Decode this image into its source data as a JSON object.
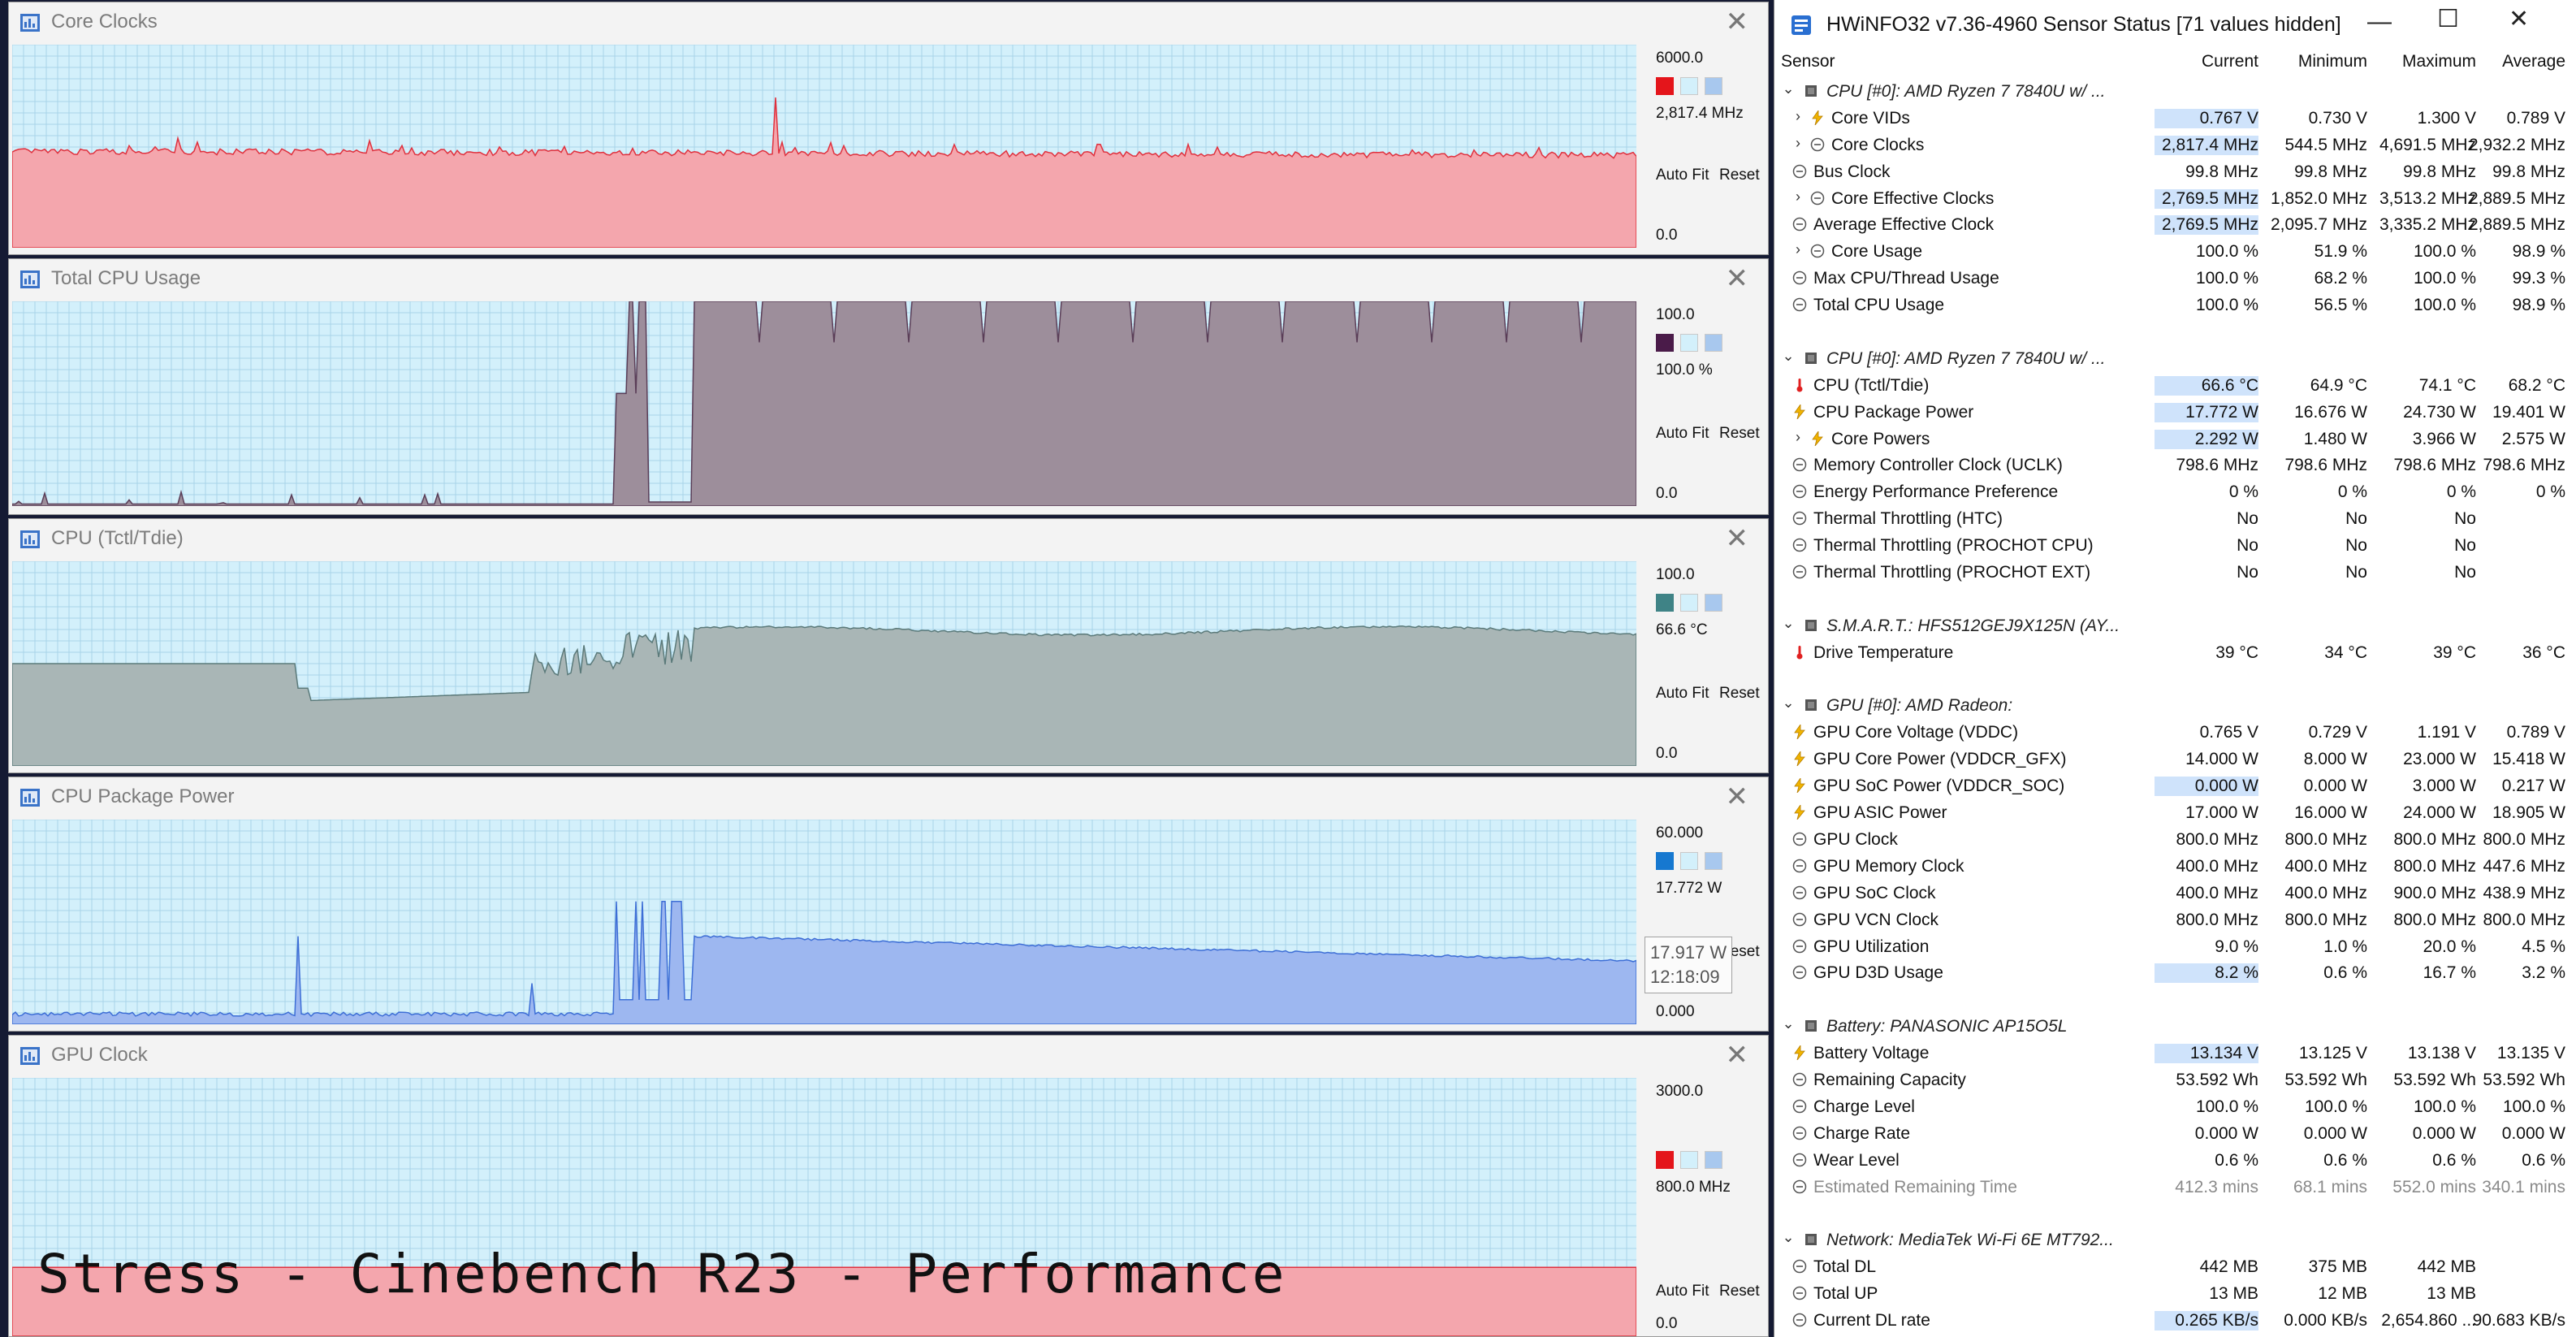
{
  "overlay_text": "Stress - Cinebench R23 - Performance",
  "graphs": [
    {
      "title": "Core Clocks",
      "max": "6000.0",
      "current": "2,817.4 MHz",
      "min": "0.0",
      "auto_fit": "Auto Fit",
      "reset": "Reset",
      "color": "#f4a6ad",
      "line": "#e0303d",
      "swatch": "#e4151b",
      "fill_level": 0.47,
      "trace": "clocks"
    },
    {
      "title": "Total CPU Usage",
      "max": "100.0",
      "current": "100.0 %",
      "min": "0.0",
      "auto_fit": "Auto Fit",
      "reset": "Reset",
      "color": "#9d8e9b",
      "line": "#5a3d57",
      "swatch": "#4a1b49",
      "fill_level": 1.0,
      "trace": "usage"
    },
    {
      "title": "CPU (Tctl/Tdie)",
      "max": "100.0",
      "current": "66.6 °C",
      "min": "0.0",
      "auto_fit": "Auto Fit",
      "reset": "Reset",
      "color": "#a9b6b6",
      "line": "#5b7a7a",
      "swatch": "#3f8386",
      "fill_level": 0.666,
      "trace": "temp"
    },
    {
      "title": "CPU Package Power",
      "max": "60.000",
      "current": "17.772 W",
      "min": "0.000",
      "auto_fit": "Auto Fit",
      "reset": "Reset",
      "color": "#9db7f0",
      "line": "#3d6ed6",
      "swatch": "#1678d0",
      "fill_level": 0.296,
      "trace": "power",
      "tooltip_value": "17.917 W",
      "tooltip_time": "12:18:09"
    },
    {
      "title": "GPU Clock",
      "max": "3000.0",
      "current": "800.0 MHz",
      "min": "0.0",
      "auto_fit": "Auto Fit",
      "reset": "Reset",
      "color": "#f4a6ad",
      "line": "#e0303d",
      "swatch": "#e4151b",
      "fill_level": 0.2667,
      "trace": "flat"
    }
  ],
  "hw": {
    "title": "HWiNFO32 v7.36-4960 Sensor Status [71 values hidden]",
    "columns": {
      "sensor": "Sensor",
      "current": "Current",
      "minimum": "Minimum",
      "maximum": "Maximum",
      "average": "Average"
    },
    "rows": [
      {
        "type": "group",
        "name": "CPU [#0]: AMD Ryzen 7 7840U w/ ..."
      },
      {
        "type": "row",
        "exp": true,
        "icon": "bolt",
        "name": "Core VIDs",
        "cur": "0.767 V",
        "min": "0.730 V",
        "max": "1.300 V",
        "avg": "0.789 V",
        "hl": true
      },
      {
        "type": "row",
        "exp": true,
        "icon": "clock",
        "name": "Core Clocks",
        "cur": "2,817.4 MHz",
        "min": "544.5 MHz",
        "max": "4,691.5 MHz",
        "avg": "2,932.2 MHz",
        "hl": true
      },
      {
        "type": "row",
        "icon": "clock",
        "name": "Bus Clock",
        "cur": "99.8 MHz",
        "min": "99.8 MHz",
        "max": "99.8 MHz",
        "avg": "99.8 MHz"
      },
      {
        "type": "row",
        "exp": true,
        "icon": "clock",
        "name": "Core Effective Clocks",
        "cur": "2,769.5 MHz",
        "min": "1,852.0 MHz",
        "max": "3,513.2 MHz",
        "avg": "2,889.5 MHz",
        "hl": true
      },
      {
        "type": "row",
        "icon": "clock",
        "name": "Average Effective Clock",
        "cur": "2,769.5 MHz",
        "min": "2,095.7 MHz",
        "max": "3,335.2 MHz",
        "avg": "2,889.5 MHz",
        "hl": true
      },
      {
        "type": "row",
        "exp": true,
        "icon": "clock",
        "name": "Core Usage",
        "cur": "100.0 %",
        "min": "51.9 %",
        "max": "100.0 %",
        "avg": "98.9 %"
      },
      {
        "type": "row",
        "icon": "clock",
        "name": "Max CPU/Thread Usage",
        "cur": "100.0 %",
        "min": "68.2 %",
        "max": "100.0 %",
        "avg": "99.3 %"
      },
      {
        "type": "row",
        "icon": "clock",
        "name": "Total CPU Usage",
        "cur": "100.0 %",
        "min": "56.5 %",
        "max": "100.0 %",
        "avg": "98.9 %"
      },
      {
        "type": "spacer"
      },
      {
        "type": "group",
        "name": "CPU [#0]: AMD Ryzen 7 7840U w/ ..."
      },
      {
        "type": "row",
        "icon": "therm",
        "name": "CPU (Tctl/Tdie)",
        "cur": "66.6 °C",
        "min": "64.9 °C",
        "max": "74.1 °C",
        "avg": "68.2 °C",
        "hl": true
      },
      {
        "type": "row",
        "icon": "bolt",
        "name": "CPU Package Power",
        "cur": "17.772 W",
        "min": "16.676 W",
        "max": "24.730 W",
        "avg": "19.401 W",
        "hl": true
      },
      {
        "type": "row",
        "exp": true,
        "icon": "bolt",
        "name": "Core Powers",
        "cur": "2.292 W",
        "min": "1.480 W",
        "max": "3.966 W",
        "avg": "2.575 W",
        "hl": true
      },
      {
        "type": "row",
        "icon": "clock",
        "name": "Memory Controller Clock (UCLK)",
        "cur": "798.6 MHz",
        "min": "798.6 MHz",
        "max": "798.6 MHz",
        "avg": "798.6 MHz"
      },
      {
        "type": "row",
        "icon": "clock",
        "name": "Energy Performance Preference",
        "cur": "0 %",
        "min": "0 %",
        "max": "0 %",
        "avg": "0 %"
      },
      {
        "type": "row",
        "icon": "clock",
        "name": "Thermal Throttling (HTC)",
        "cur": "No",
        "min": "No",
        "max": "No",
        "avg": ""
      },
      {
        "type": "row",
        "icon": "clock",
        "name": "Thermal Throttling (PROCHOT CPU)",
        "cur": "No",
        "min": "No",
        "max": "No",
        "avg": ""
      },
      {
        "type": "row",
        "icon": "clock",
        "name": "Thermal Throttling (PROCHOT EXT)",
        "cur": "No",
        "min": "No",
        "max": "No",
        "avg": ""
      },
      {
        "type": "spacer"
      },
      {
        "type": "group",
        "name": "S.M.A.R.T.: HFS512GEJ9X125N (AY..."
      },
      {
        "type": "row",
        "icon": "therm",
        "name": "Drive Temperature",
        "cur": "39 °C",
        "min": "34 °C",
        "max": "39 °C",
        "avg": "36 °C"
      },
      {
        "type": "spacer"
      },
      {
        "type": "group",
        "name": "GPU [#0]: AMD Radeon:"
      },
      {
        "type": "row",
        "icon": "bolt",
        "name": "GPU Core Voltage (VDDC)",
        "cur": "0.765 V",
        "min": "0.729 V",
        "max": "1.191 V",
        "avg": "0.789 V"
      },
      {
        "type": "row",
        "icon": "bolt",
        "name": "GPU Core Power (VDDCR_GFX)",
        "cur": "14.000 W",
        "min": "8.000 W",
        "max": "23.000 W",
        "avg": "15.418 W"
      },
      {
        "type": "row",
        "icon": "bolt",
        "name": "GPU SoC Power (VDDCR_SOC)",
        "cur": "0.000 W",
        "min": "0.000 W",
        "max": "3.000 W",
        "avg": "0.217 W",
        "hl": true
      },
      {
        "type": "row",
        "icon": "bolt",
        "name": "GPU ASIC Power",
        "cur": "17.000 W",
        "min": "16.000 W",
        "max": "24.000 W",
        "avg": "18.905 W"
      },
      {
        "type": "row",
        "icon": "clock",
        "name": "GPU Clock",
        "cur": "800.0 MHz",
        "min": "800.0 MHz",
        "max": "800.0 MHz",
        "avg": "800.0 MHz"
      },
      {
        "type": "row",
        "icon": "clock",
        "name": "GPU Memory Clock",
        "cur": "400.0 MHz",
        "min": "400.0 MHz",
        "max": "800.0 MHz",
        "avg": "447.6 MHz"
      },
      {
        "type": "row",
        "icon": "clock",
        "name": "GPU SoC Clock",
        "cur": "400.0 MHz",
        "min": "400.0 MHz",
        "max": "900.0 MHz",
        "avg": "438.9 MHz"
      },
      {
        "type": "row",
        "icon": "clock",
        "name": "GPU VCN Clock",
        "cur": "800.0 MHz",
        "min": "800.0 MHz",
        "max": "800.0 MHz",
        "avg": "800.0 MHz"
      },
      {
        "type": "row",
        "icon": "clock",
        "name": "GPU Utilization",
        "cur": "9.0 %",
        "min": "1.0 %",
        "max": "20.0 %",
        "avg": "4.5 %"
      },
      {
        "type": "row",
        "icon": "clock",
        "name": "GPU D3D Usage",
        "cur": "8.2 %",
        "min": "0.6 %",
        "max": "16.7 %",
        "avg": "3.2 %",
        "hl": true
      },
      {
        "type": "spacer"
      },
      {
        "type": "group",
        "name": "Battery: PANASONIC AP15O5L"
      },
      {
        "type": "row",
        "icon": "bolt",
        "name": "Battery Voltage",
        "cur": "13.134 V",
        "min": "13.125 V",
        "max": "13.138 V",
        "avg": "13.135 V",
        "hl": true
      },
      {
        "type": "row",
        "icon": "clock",
        "name": "Remaining Capacity",
        "cur": "53.592 Wh",
        "min": "53.592 Wh",
        "max": "53.592 Wh",
        "avg": "53.592 Wh"
      },
      {
        "type": "row",
        "icon": "clock",
        "name": "Charge Level",
        "cur": "100.0 %",
        "min": "100.0 %",
        "max": "100.0 %",
        "avg": "100.0 %"
      },
      {
        "type": "row",
        "icon": "clock",
        "name": "Charge Rate",
        "cur": "0.000 W",
        "min": "0.000 W",
        "max": "0.000 W",
        "avg": "0.000 W"
      },
      {
        "type": "row",
        "icon": "clock",
        "name": "Wear Level",
        "cur": "0.6 %",
        "min": "0.6 %",
        "max": "0.6 %",
        "avg": "0.6 %"
      },
      {
        "type": "row",
        "icon": "clock",
        "name": "Estimated Remaining Time",
        "cur": "412.3 mins",
        "min": "68.1 mins",
        "max": "552.0 mins",
        "avg": "340.1 mins",
        "gray": true
      },
      {
        "type": "spacer"
      },
      {
        "type": "group",
        "name": "Network: MediaTek Wi-Fi 6E MT792..."
      },
      {
        "type": "row",
        "icon": "clock",
        "name": "Total DL",
        "cur": "442 MB",
        "min": "375 MB",
        "max": "442 MB",
        "avg": ""
      },
      {
        "type": "row",
        "icon": "clock",
        "name": "Total UP",
        "cur": "13 MB",
        "min": "12 MB",
        "max": "13 MB",
        "avg": ""
      },
      {
        "type": "row",
        "icon": "clock",
        "name": "Current DL rate",
        "cur": "0.265 KB/s",
        "min": "0.000 KB/s",
        "max": "2,654.860 ...",
        "avg": "90.683 KB/s",
        "hl": true
      }
    ]
  }
}
